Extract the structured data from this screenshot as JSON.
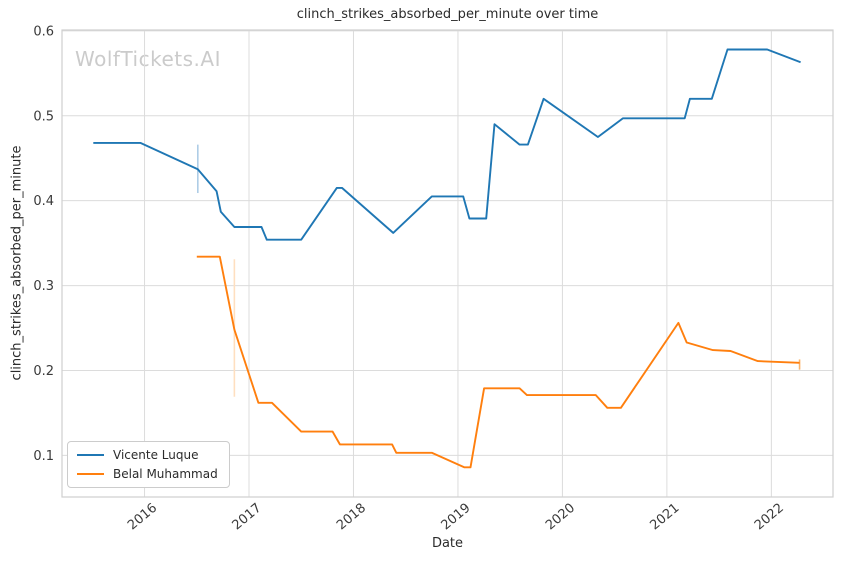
{
  "chart_data": {
    "type": "line",
    "title": "clinch_strikes_absorbed_per_minute over time",
    "xlabel": "Date",
    "ylabel": "clinch_strikes_absorbed_per_minute",
    "watermark": "WolfTickets.AI",
    "grid": true,
    "legend_position": "lower left",
    "xlim": [
      2015.21,
      2022.59
    ],
    "ylim": [
      0.051,
      0.601
    ],
    "x_ticks": [
      2016,
      2017,
      2018,
      2019,
      2020,
      2021,
      2022
    ],
    "y_ticks": [
      0.1,
      0.2,
      0.3,
      0.4,
      0.5,
      0.6
    ],
    "style": {
      "grid_color": "#dcdcdc",
      "border_color": "#cfcfcf",
      "tick_label_color": "#3a3a3a",
      "background": "#ffffff"
    },
    "series": [
      {
        "name": "Vicente Luque",
        "color": "#1f77b4",
        "points": [
          [
            2015.51,
            0.468
          ],
          [
            2015.96,
            0.468
          ],
          [
            2016.51,
            0.437
          ],
          [
            2016.69,
            0.411
          ],
          [
            2016.73,
            0.387
          ],
          [
            2016.86,
            0.369
          ],
          [
            2017.12,
            0.369
          ],
          [
            2017.17,
            0.354
          ],
          [
            2017.5,
            0.354
          ],
          [
            2017.84,
            0.415
          ],
          [
            2017.89,
            0.415
          ],
          [
            2018.38,
            0.362
          ],
          [
            2018.75,
            0.405
          ],
          [
            2019.05,
            0.405
          ],
          [
            2019.11,
            0.379
          ],
          [
            2019.27,
            0.379
          ],
          [
            2019.35,
            0.49
          ],
          [
            2019.59,
            0.466
          ],
          [
            2019.67,
            0.466
          ],
          [
            2019.82,
            0.52
          ],
          [
            2020.34,
            0.475
          ],
          [
            2020.58,
            0.497
          ],
          [
            2021.17,
            0.497
          ],
          [
            2021.22,
            0.52
          ],
          [
            2021.43,
            0.52
          ],
          [
            2021.58,
            0.578
          ],
          [
            2021.96,
            0.578
          ],
          [
            2022.28,
            0.563
          ]
        ]
      },
      {
        "name": "Belal Muhammad",
        "color": "#ff7f0e",
        "points": [
          [
            2016.5,
            0.334
          ],
          [
            2016.72,
            0.334
          ],
          [
            2016.86,
            0.248
          ],
          [
            2017.09,
            0.162
          ],
          [
            2017.22,
            0.162
          ],
          [
            2017.5,
            0.128
          ],
          [
            2017.8,
            0.128
          ],
          [
            2017.87,
            0.113
          ],
          [
            2018.37,
            0.113
          ],
          [
            2018.41,
            0.103
          ],
          [
            2018.75,
            0.103
          ],
          [
            2019.06,
            0.086
          ],
          [
            2019.12,
            0.086
          ],
          [
            2019.25,
            0.179
          ],
          [
            2019.59,
            0.179
          ],
          [
            2019.66,
            0.171
          ],
          [
            2020.32,
            0.171
          ],
          [
            2020.43,
            0.156
          ],
          [
            2020.56,
            0.156
          ],
          [
            2021.11,
            0.256
          ],
          [
            2021.19,
            0.233
          ],
          [
            2021.44,
            0.224
          ],
          [
            2021.61,
            0.223
          ],
          [
            2021.87,
            0.211
          ],
          [
            2022.27,
            0.209
          ]
        ]
      }
    ],
    "error_bars": [
      {
        "series": "Vicente Luque",
        "x": 2016.51,
        "y": 0.437,
        "y_low": 0.409,
        "y_high": 0.466,
        "color": "#aecde6"
      },
      {
        "series": "Belal Muhammad",
        "x": 2016.86,
        "y": 0.248,
        "y_low": 0.169,
        "y_high": 0.331,
        "color": "#ffdfc0"
      },
      {
        "series": "Belal Muhammad",
        "x": 2022.27,
        "y": 0.209,
        "y_low": 0.201,
        "y_high": 0.213,
        "color": "#fbb express"
      }
    ]
  }
}
